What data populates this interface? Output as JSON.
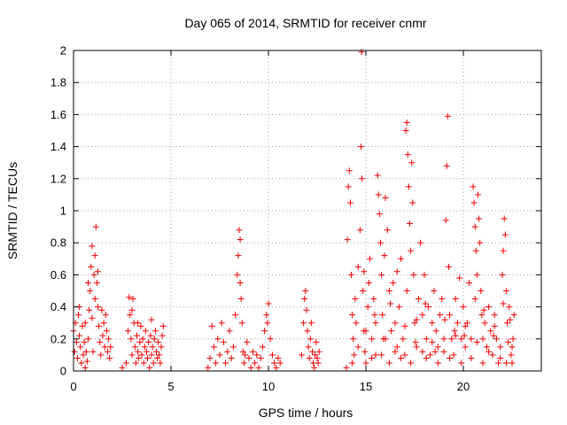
{
  "chart_data": {
    "type": "scatter",
    "title": "Day 065 of 2014, SRMTID for receiver cnmr",
    "xlabel": "GPS time / hours",
    "ylabel": "SRMTID / TECUs",
    "xlim": [
      0,
      24
    ],
    "ylim": [
      0,
      2
    ],
    "xticks": [
      0,
      5,
      10,
      15,
      20
    ],
    "yticks": [
      0,
      0.2,
      0.4,
      0.6,
      0.8,
      1,
      1.2,
      1.4,
      1.6,
      1.8,
      2
    ],
    "xtick_labels": [
      "0",
      "5",
      "10",
      "15",
      "20"
    ],
    "ytick_labels": [
      "0",
      "0.2",
      "0.4",
      "0.6",
      "0.8",
      "1",
      "1.2",
      "1.4",
      "1.6",
      "1.8",
      "2"
    ],
    "grid": true,
    "marker": "plus",
    "color": "#ee0000",
    "series": [
      {
        "name": "SRMTID",
        "points": [
          [
            0.0,
            0.25
          ],
          [
            0.05,
            0.12
          ],
          [
            0.1,
            0.3
          ],
          [
            0.15,
            0.18
          ],
          [
            0.2,
            0.08
          ],
          [
            0.25,
            0.35
          ],
          [
            0.3,
            0.22
          ],
          [
            0.35,
            0.15
          ],
          [
            0.4,
            0.05
          ],
          [
            0.45,
            0.28
          ],
          [
            0.5,
            0.1
          ],
          [
            0.55,
            0.18
          ],
          [
            0.6,
            0.02
          ],
          [
            0.65,
            0.12
          ],
          [
            0.7,
            0.06
          ],
          [
            0.75,
            0.2
          ],
          [
            0.8,
            0.38
          ],
          [
            0.85,
            0.5
          ],
          [
            0.9,
            0.65
          ],
          [
            0.95,
            0.33
          ],
          [
            1.0,
            0.12
          ],
          [
            1.05,
            0.6
          ],
          [
            1.1,
            0.72
          ],
          [
            1.15,
            0.9
          ],
          [
            1.2,
            0.55
          ],
          [
            1.25,
            0.4
          ],
          [
            1.3,
            0.28
          ],
          [
            1.35,
            0.18
          ],
          [
            1.4,
            0.1
          ],
          [
            1.5,
            0.22
          ],
          [
            1.55,
            0.3
          ],
          [
            1.6,
            0.15
          ],
          [
            1.65,
            0.35
          ],
          [
            1.7,
            0.25
          ],
          [
            1.75,
            0.12
          ],
          [
            1.8,
            0.2
          ],
          [
            1.85,
            0.08
          ],
          [
            0.95,
            0.78
          ],
          [
            1.1,
            0.45
          ],
          [
            1.25,
            0.62
          ],
          [
            0.3,
            0.4
          ],
          [
            0.6,
            0.3
          ],
          [
            0.75,
            0.55
          ],
          [
            1.45,
            0.38
          ],
          [
            1.9,
            0.15
          ],
          [
            2.5,
            0.02
          ],
          [
            2.7,
            0.05
          ],
          [
            2.8,
            0.25
          ],
          [
            2.85,
            0.46
          ],
          [
            2.9,
            0.35
          ],
          [
            2.95,
            0.2
          ],
          [
            3.0,
            0.1
          ],
          [
            3.05,
            0.45
          ],
          [
            3.1,
            0.3
          ],
          [
            3.15,
            0.15
          ],
          [
            3.2,
            0.05
          ],
          [
            3.25,
            0.22
          ],
          [
            3.3,
            0.12
          ],
          [
            3.35,
            0.08
          ],
          [
            3.4,
            0.18
          ],
          [
            3.45,
            0.28
          ],
          [
            3.5,
            0.1
          ],
          [
            3.55,
            0.2
          ],
          [
            3.6,
            0.05
          ],
          [
            3.65,
            0.15
          ],
          [
            3.7,
            0.25
          ],
          [
            3.75,
            0.12
          ],
          [
            3.8,
            0.08
          ],
          [
            3.85,
            0.18
          ],
          [
            3.9,
            0.02
          ],
          [
            3.95,
            0.22
          ],
          [
            4.0,
            0.1
          ],
          [
            4.05,
            0.15
          ],
          [
            4.1,
            0.05
          ],
          [
            4.15,
            0.2
          ],
          [
            4.2,
            0.25
          ],
          [
            4.25,
            0.12
          ],
          [
            4.3,
            0.08
          ],
          [
            4.35,
            0.18
          ],
          [
            4.4,
            0.1
          ],
          [
            4.45,
            0.05
          ],
          [
            4.5,
            0.15
          ],
          [
            4.55,
            0.22
          ],
          [
            4.6,
            0.28
          ],
          [
            3.0,
            0.38
          ],
          [
            3.3,
            0.3
          ],
          [
            4.0,
            0.32
          ],
          [
            6.9,
            0.02
          ],
          [
            7.0,
            0.08
          ],
          [
            7.1,
            0.28
          ],
          [
            7.2,
            0.15
          ],
          [
            7.3,
            0.05
          ],
          [
            7.4,
            0.2
          ],
          [
            7.5,
            0.1
          ],
          [
            7.6,
            0.3
          ],
          [
            7.7,
            0.18
          ],
          [
            7.8,
            0.05
          ],
          [
            7.9,
            0.12
          ],
          [
            8.0,
            0.25
          ],
          [
            8.1,
            0.08
          ],
          [
            8.2,
            0.15
          ],
          [
            8.3,
            0.35
          ],
          [
            8.4,
            0.6
          ],
          [
            8.45,
            0.72
          ],
          [
            8.5,
            0.88
          ],
          [
            8.55,
            0.55
          ],
          [
            8.6,
            0.45
          ],
          [
            8.65,
            0.3
          ],
          [
            8.7,
            0.12
          ],
          [
            8.75,
            0.05
          ],
          [
            8.8,
            0.1
          ],
          [
            8.9,
            0.18
          ],
          [
            9.0,
            0.08
          ],
          [
            9.1,
            0.02
          ],
          [
            9.2,
            0.12
          ],
          [
            9.3,
            0.05
          ],
          [
            9.4,
            0.1
          ],
          [
            9.5,
            0.02
          ],
          [
            9.6,
            0.08
          ],
          [
            9.7,
            0.15
          ],
          [
            9.8,
            0.25
          ],
          [
            9.9,
            0.35
          ],
          [
            10.0,
            0.42
          ],
          [
            10.1,
            0.2
          ],
          [
            10.2,
            0.1
          ],
          [
            10.3,
            0.05
          ],
          [
            10.4,
            0.02
          ],
          [
            10.5,
            0.08
          ],
          [
            10.6,
            0.05
          ],
          [
            8.55,
            0.82
          ],
          [
            9.95,
            0.3
          ],
          [
            11.7,
            0.1
          ],
          [
            11.8,
            0.3
          ],
          [
            11.85,
            0.45
          ],
          [
            11.9,
            0.5
          ],
          [
            11.95,
            0.38
          ],
          [
            12.0,
            0.25
          ],
          [
            12.05,
            0.15
          ],
          [
            12.1,
            0.08
          ],
          [
            12.15,
            0.2
          ],
          [
            12.2,
            0.3
          ],
          [
            12.25,
            0.12
          ],
          [
            12.3,
            0.05
          ],
          [
            12.35,
            0.02
          ],
          [
            12.4,
            0.1
          ],
          [
            12.45,
            0.18
          ],
          [
            12.5,
            0.08
          ],
          [
            12.55,
            0.05
          ],
          [
            12.6,
            0.12
          ],
          [
            14.0,
            0.02
          ],
          [
            14.05,
            0.82
          ],
          [
            14.1,
            1.15
          ],
          [
            14.15,
            1.25
          ],
          [
            14.2,
            1.05
          ],
          [
            14.25,
            0.6
          ],
          [
            14.3,
            0.35
          ],
          [
            14.35,
            0.2
          ],
          [
            14.4,
            0.1
          ],
          [
            14.5,
            0.3
          ],
          [
            14.6,
            0.65
          ],
          [
            14.7,
            0.88
          ],
          [
            14.75,
            1.4
          ],
          [
            14.8,
            1.2
          ],
          [
            14.85,
            0.5
          ],
          [
            14.9,
            0.25
          ],
          [
            14.95,
            0.12
          ],
          [
            14.78,
            1.99
          ],
          [
            15.0,
            0.05
          ],
          [
            15.1,
            0.4
          ],
          [
            15.2,
            0.7
          ],
          [
            15.3,
            0.2
          ],
          [
            15.4,
            0.45
          ],
          [
            15.5,
            0.1
          ],
          [
            15.6,
            1.22
          ],
          [
            15.65,
            1.1
          ],
          [
            15.7,
            0.98
          ],
          [
            15.75,
            0.8
          ],
          [
            15.8,
            0.6
          ],
          [
            15.85,
            0.35
          ],
          [
            15.9,
            0.2
          ],
          [
            16.0,
            1.08
          ],
          [
            16.1,
            0.88
          ],
          [
            16.2,
            0.5
          ],
          [
            16.3,
            0.25
          ],
          [
            16.4,
            0.55
          ],
          [
            16.5,
            0.3
          ],
          [
            16.6,
            0.15
          ],
          [
            16.7,
            0.4
          ],
          [
            16.8,
            0.7
          ],
          [
            16.9,
            0.2
          ],
          [
            17.0,
            0.1
          ],
          [
            17.05,
            1.5
          ],
          [
            17.1,
            1.55
          ],
          [
            17.15,
            1.35
          ],
          [
            17.2,
            1.15
          ],
          [
            17.25,
            0.92
          ],
          [
            17.3,
            0.75
          ],
          [
            17.35,
            1.3
          ],
          [
            17.4,
            1.05
          ],
          [
            17.45,
            0.6
          ],
          [
            17.5,
            0.3
          ],
          [
            17.6,
            0.15
          ],
          [
            17.7,
            0.45
          ],
          [
            17.8,
            0.8
          ],
          [
            17.9,
            0.35
          ],
          [
            18.0,
            0.6
          ],
          [
            18.1,
            0.2
          ],
          [
            18.2,
            0.4
          ],
          [
            18.3,
            0.1
          ],
          [
            18.4,
            0.3
          ],
          [
            18.5,
            0.5
          ],
          [
            18.6,
            0.25
          ],
          [
            18.7,
            0.15
          ],
          [
            18.8,
            0.35
          ],
          [
            18.9,
            0.45
          ],
          [
            19.0,
            0.2
          ],
          [
            19.1,
            0.94
          ],
          [
            19.15,
            1.28
          ],
          [
            19.2,
            1.59
          ],
          [
            19.25,
            0.65
          ],
          [
            19.3,
            0.35
          ],
          [
            19.4,
            0.2
          ],
          [
            19.5,
            0.1
          ],
          [
            19.6,
            0.45
          ],
          [
            19.7,
            0.3
          ],
          [
            19.8,
            0.58
          ],
          [
            19.9,
            0.2
          ],
          [
            20.0,
            0.4
          ],
          [
            20.1,
            0.15
          ],
          [
            20.2,
            0.3
          ],
          [
            20.3,
            0.55
          ],
          [
            20.4,
            0.2
          ],
          [
            20.5,
            1.15
          ],
          [
            20.55,
            1.05
          ],
          [
            20.6,
            0.9
          ],
          [
            20.65,
            0.75
          ],
          [
            20.7,
            0.6
          ],
          [
            20.75,
            1.1
          ],
          [
            20.8,
            0.95
          ],
          [
            20.85,
            0.8
          ],
          [
            20.9,
            0.5
          ],
          [
            20.95,
            0.35
          ],
          [
            21.0,
            0.2
          ],
          [
            21.1,
            0.3
          ],
          [
            21.2,
            0.15
          ],
          [
            21.3,
            0.4
          ],
          [
            21.4,
            0.25
          ],
          [
            21.5,
            0.1
          ],
          [
            21.6,
            0.35
          ],
          [
            21.7,
            0.2
          ],
          [
            21.8,
            0.05
          ],
          [
            21.9,
            0.15
          ],
          [
            22.0,
            0.6
          ],
          [
            22.05,
            0.75
          ],
          [
            22.1,
            0.95
          ],
          [
            22.15,
            0.85
          ],
          [
            22.2,
            0.5
          ],
          [
            22.25,
            0.3
          ],
          [
            22.3,
            0.18
          ],
          [
            22.35,
            0.4
          ],
          [
            22.4,
            0.32
          ],
          [
            22.45,
            0.1
          ],
          [
            22.5,
            0.05
          ],
          [
            22.55,
            0.2
          ],
          [
            22.6,
            0.35
          ],
          [
            14.3,
            0.05
          ],
          [
            14.6,
            0.15
          ],
          [
            15.0,
            0.25
          ],
          [
            15.3,
            0.08
          ],
          [
            15.5,
            0.3
          ],
          [
            15.8,
            0.1
          ],
          [
            16.0,
            0.2
          ],
          [
            16.2,
            0.05
          ],
          [
            16.5,
            0.12
          ],
          [
            16.8,
            0.08
          ],
          [
            17.0,
            0.28
          ],
          [
            17.3,
            0.05
          ],
          [
            17.6,
            0.32
          ],
          [
            17.9,
            0.12
          ],
          [
            18.1,
            0.08
          ],
          [
            18.4,
            0.18
          ],
          [
            18.7,
            0.05
          ],
          [
            19.0,
            0.12
          ],
          [
            19.3,
            0.08
          ],
          [
            19.6,
            0.22
          ],
          [
            19.9,
            0.05
          ],
          [
            20.1,
            0.28
          ],
          [
            20.4,
            0.08
          ],
          [
            20.7,
            0.18
          ],
          [
            21.0,
            0.05
          ],
          [
            21.3,
            0.12
          ],
          [
            21.6,
            0.28
          ],
          [
            21.9,
            0.08
          ],
          [
            22.2,
            0.05
          ],
          [
            22.5,
            0.15
          ],
          [
            14.45,
            0.45
          ],
          [
            14.9,
            0.62
          ],
          [
            15.15,
            0.55
          ],
          [
            15.45,
            0.35
          ],
          [
            15.95,
            0.72
          ],
          [
            16.25,
            0.42
          ],
          [
            16.6,
            0.62
          ],
          [
            17.1,
            0.5
          ],
          [
            17.55,
            0.18
          ],
          [
            18.05,
            0.42
          ],
          [
            18.55,
            0.12
          ],
          [
            19.05,
            0.32
          ],
          [
            19.55,
            0.25
          ],
          [
            20.05,
            0.22
          ],
          [
            20.6,
            0.45
          ],
          [
            21.05,
            0.38
          ],
          [
            21.55,
            0.22
          ],
          [
            22.05,
            0.42
          ]
        ]
      }
    ]
  }
}
